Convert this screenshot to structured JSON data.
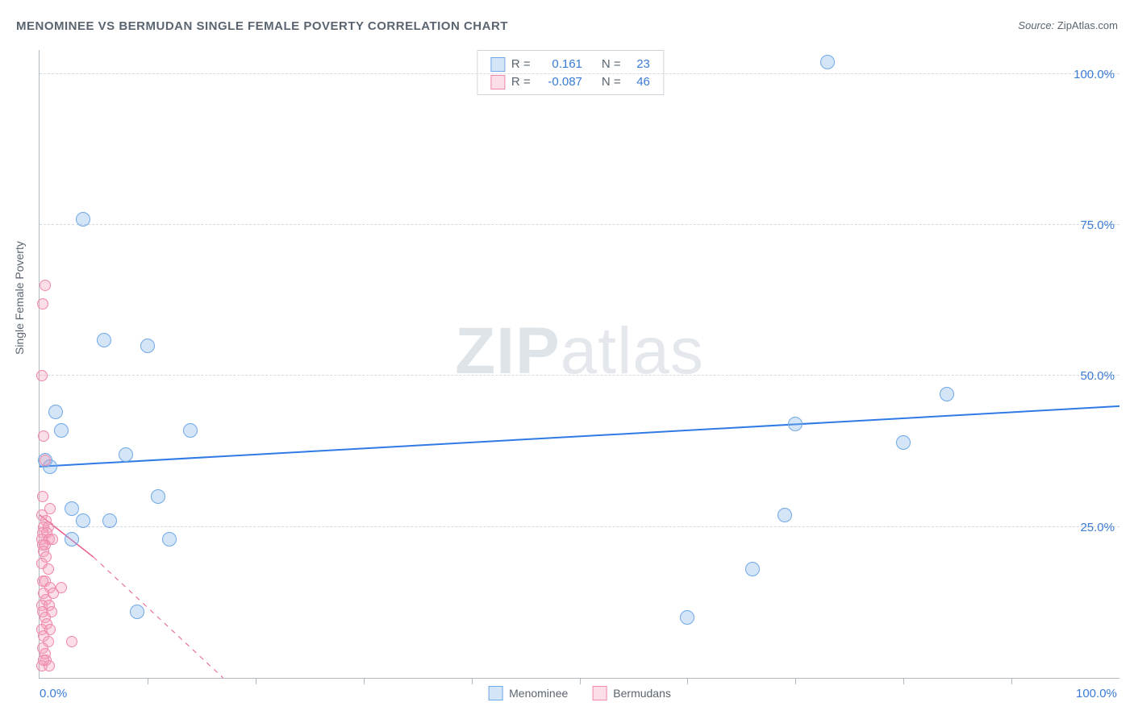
{
  "title": "MENOMINEE VS BERMUDAN SINGLE FEMALE POVERTY CORRELATION CHART",
  "source_label": "Source:",
  "source_value": "ZipAtlas.com",
  "yaxis_title": "Single Female Poverty",
  "watermark_bold": "ZIP",
  "watermark_light": "atlas",
  "chart": {
    "type": "scatter",
    "xlim": [
      0,
      100
    ],
    "ylim": [
      0,
      104
    ],
    "background_color": "#ffffff",
    "grid_color": "#d5d9de",
    "axis_color": "#b0b8c0",
    "h_gridlines": [
      25,
      50,
      75,
      100
    ],
    "x_ticklabels": [
      {
        "v": 0,
        "label": "0.0%"
      },
      {
        "v": 100,
        "label": "100.0%"
      }
    ],
    "y_ticklabels": [
      {
        "v": 25,
        "label": "25.0%"
      },
      {
        "v": 50,
        "label": "50.0%"
      },
      {
        "v": 75,
        "label": "75.0%"
      },
      {
        "v": 100,
        "label": "100.0%"
      }
    ],
    "x_minor_ticks": [
      10,
      20,
      30,
      40,
      50,
      60,
      70,
      80,
      90
    ],
    "series": [
      {
        "name": "Menominee",
        "marker_color_fill": "rgba(133,180,234,0.35)",
        "marker_color_stroke": "#6fa8e6",
        "marker_radius": 9,
        "line_color": "#2f7ae5",
        "line_width": 2,
        "line_solid_extent": [
          0,
          100
        ],
        "regression": {
          "y_at_x0": 35,
          "y_at_x100": 45
        },
        "stats": {
          "R": "0.161",
          "N": "23"
        },
        "points": [
          {
            "x": 0.5,
            "y": 36
          },
          {
            "x": 4,
            "y": 76
          },
          {
            "x": 6,
            "y": 56
          },
          {
            "x": 10,
            "y": 55
          },
          {
            "x": 1.5,
            "y": 44
          },
          {
            "x": 2,
            "y": 41
          },
          {
            "x": 8,
            "y": 37
          },
          {
            "x": 14,
            "y": 41
          },
          {
            "x": 3,
            "y": 28
          },
          {
            "x": 4,
            "y": 26
          },
          {
            "x": 6.5,
            "y": 26
          },
          {
            "x": 11,
            "y": 30
          },
          {
            "x": 12,
            "y": 23
          },
          {
            "x": 3,
            "y": 23
          },
          {
            "x": 9,
            "y": 11
          },
          {
            "x": 1,
            "y": 35
          },
          {
            "x": 60,
            "y": 10
          },
          {
            "x": 66,
            "y": 18
          },
          {
            "x": 69,
            "y": 27
          },
          {
            "x": 70,
            "y": 42
          },
          {
            "x": 73,
            "y": 102
          },
          {
            "x": 80,
            "y": 39
          },
          {
            "x": 84,
            "y": 47
          }
        ]
      },
      {
        "name": "Bermudans",
        "marker_color_fill": "rgba(244,160,186,0.35)",
        "marker_color_stroke": "#ef87aa",
        "marker_radius": 7,
        "line_color": "#e85a8c",
        "line_width": 1.5,
        "line_solid_extent": [
          0,
          5
        ],
        "line_dashed_extent": [
          5,
          17
        ],
        "regression": {
          "y_at_x0": 27,
          "y_at_x5": 20,
          "y_at_x17": 0
        },
        "stats": {
          "R": "-0.087",
          "N": "46"
        },
        "points": [
          {
            "x": 0.5,
            "y": 65
          },
          {
            "x": 0.3,
            "y": 62
          },
          {
            "x": 0.2,
            "y": 50
          },
          {
            "x": 0.4,
            "y": 40
          },
          {
            "x": 0.5,
            "y": 36
          },
          {
            "x": 0.3,
            "y": 30
          },
          {
            "x": 1.0,
            "y": 28
          },
          {
            "x": 0.2,
            "y": 27
          },
          {
            "x": 0.6,
            "y": 26
          },
          {
            "x": 0.4,
            "y": 25
          },
          {
            "x": 0.8,
            "y": 25
          },
          {
            "x": 0.3,
            "y": 24
          },
          {
            "x": 0.7,
            "y": 24
          },
          {
            "x": 0.2,
            "y": 23
          },
          {
            "x": 0.9,
            "y": 23
          },
          {
            "x": 0.5,
            "y": 22
          },
          {
            "x": 0.3,
            "y": 22
          },
          {
            "x": 1.2,
            "y": 23
          },
          {
            "x": 0.4,
            "y": 21
          },
          {
            "x": 0.6,
            "y": 20
          },
          {
            "x": 0.2,
            "y": 19
          },
          {
            "x": 0.8,
            "y": 18
          },
          {
            "x": 0.3,
            "y": 16
          },
          {
            "x": 0.5,
            "y": 16
          },
          {
            "x": 1.0,
            "y": 15
          },
          {
            "x": 0.4,
            "y": 14
          },
          {
            "x": 1.3,
            "y": 14
          },
          {
            "x": 0.6,
            "y": 13
          },
          {
            "x": 0.2,
            "y": 12
          },
          {
            "x": 0.9,
            "y": 12
          },
          {
            "x": 0.3,
            "y": 11
          },
          {
            "x": 1.1,
            "y": 11
          },
          {
            "x": 0.5,
            "y": 10
          },
          {
            "x": 0.7,
            "y": 9
          },
          {
            "x": 0.2,
            "y": 8
          },
          {
            "x": 1.0,
            "y": 8
          },
          {
            "x": 0.4,
            "y": 7
          },
          {
            "x": 0.8,
            "y": 6
          },
          {
            "x": 2.0,
            "y": 15
          },
          {
            "x": 0.3,
            "y": 5
          },
          {
            "x": 3.0,
            "y": 6
          },
          {
            "x": 0.6,
            "y": 3
          },
          {
            "x": 0.2,
            "y": 2
          },
          {
            "x": 0.9,
            "y": 2
          },
          {
            "x": 0.4,
            "y": 3
          },
          {
            "x": 0.5,
            "y": 4
          }
        ]
      }
    ]
  },
  "legend_labels": {
    "R": "R =",
    "N": "N ="
  }
}
